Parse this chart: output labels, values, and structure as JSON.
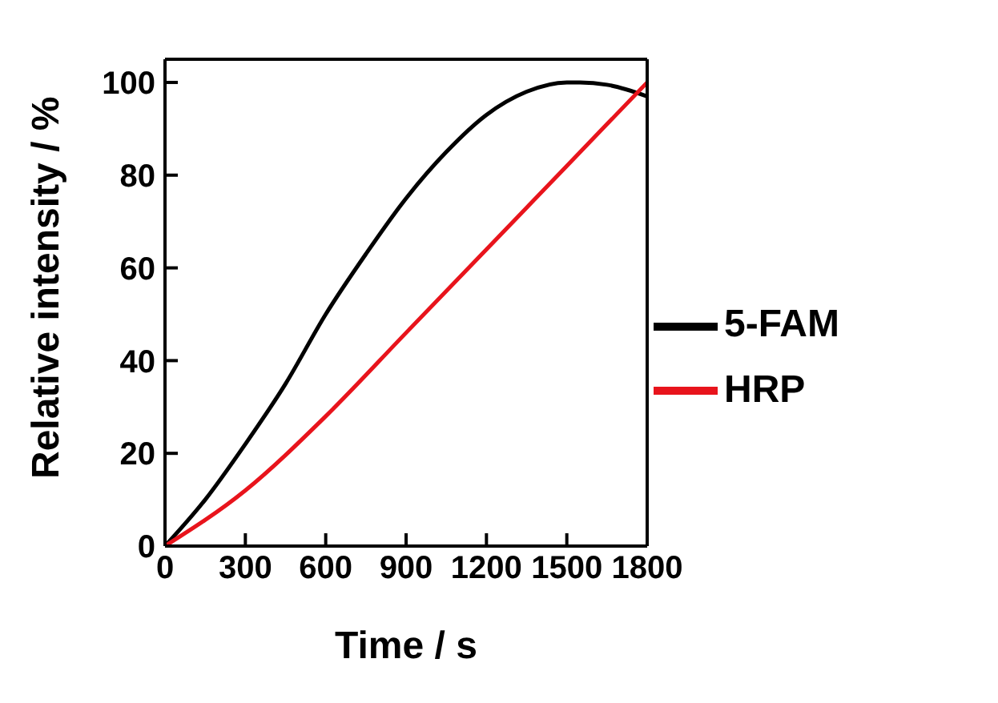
{
  "chart_data": {
    "type": "line",
    "xlabel": "Time / s",
    "ylabel": "Relative intensity / %",
    "xlim": [
      0,
      1800
    ],
    "xticks": [
      0,
      300,
      600,
      900,
      1200,
      1500,
      1800
    ],
    "ylim": [
      0,
      105
    ],
    "yticks": [
      0,
      20,
      40,
      60,
      80,
      100
    ],
    "grid": false,
    "legend": "right",
    "marker": "none",
    "line_style": "solid",
    "series": [
      {
        "name": "5-FAM",
        "color": "#000000",
        "x": [
          0,
          150,
          300,
          450,
          600,
          750,
          900,
          1050,
          1200,
          1350,
          1500,
          1550,
          1650,
          1800
        ],
        "values": [
          0,
          10,
          22,
          35,
          50,
          63,
          75,
          85,
          93,
          98,
          100,
          100,
          99.5,
          97
        ]
      },
      {
        "name": "HRP",
        "color": "#e8141c",
        "x": [
          0,
          300,
          600,
          900,
          1200,
          1500,
          1800
        ],
        "values": [
          0,
          12,
          28,
          46,
          64,
          82,
          100
        ]
      }
    ]
  }
}
